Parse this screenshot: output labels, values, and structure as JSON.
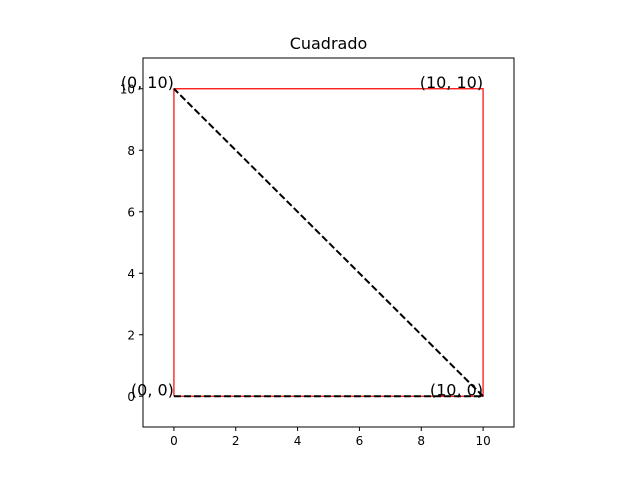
{
  "chart_data": {
    "type": "line",
    "title": "Cuadrado",
    "xlabel": "",
    "ylabel": "",
    "xlim": [
      -1,
      11
    ],
    "ylim": [
      -1,
      11
    ],
    "xticks": [
      0,
      2,
      4,
      6,
      8,
      10
    ],
    "yticks": [
      0,
      2,
      4,
      6,
      8,
      10
    ],
    "grid": false,
    "series": [
      {
        "style": "solid",
        "color": "#ff0000",
        "x": [
          0,
          10,
          10,
          0,
          0
        ],
        "y": [
          0,
          0,
          10,
          10,
          0
        ]
      },
      {
        "style": "dashed",
        "color": "#000000",
        "x": [
          0,
          10
        ],
        "y": [
          0,
          0
        ]
      },
      {
        "style": "dashed",
        "color": "#000000",
        "x": [
          10,
          0
        ],
        "y": [
          0,
          10
        ]
      }
    ],
    "annotations": [
      {
        "text": "(0, 0)",
        "x": 0,
        "y": 0,
        "align": "right"
      },
      {
        "text": "(10, 0)",
        "x": 10,
        "y": 0,
        "align": "right"
      },
      {
        "text": "(10, 10)",
        "x": 10,
        "y": 10,
        "align": "right"
      },
      {
        "text": "(0, 10)",
        "x": 0,
        "y": 10,
        "align": "right"
      }
    ]
  }
}
